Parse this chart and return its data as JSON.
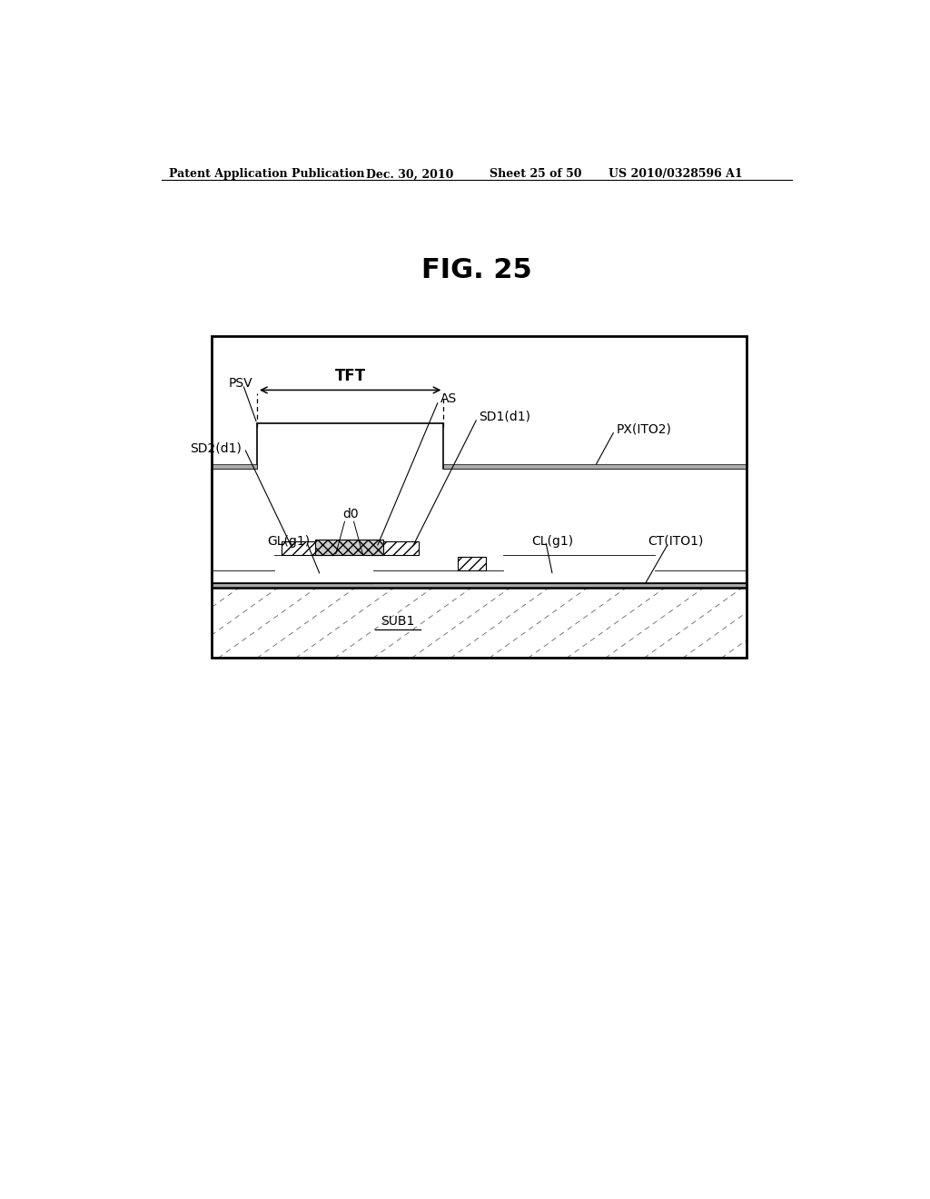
{
  "title": "FIG. 25",
  "patent_header": "Patent Application Publication",
  "patent_date": "Dec. 30, 2010",
  "patent_sheet": "Sheet 25 of 50",
  "patent_number": "US 2010/0328596 A1",
  "bg_color": "#ffffff",
  "line_color": "#000000",
  "hatch_color": "#555555",
  "gray_fill": "#aaaaaa",
  "light_gray": "#cccccc"
}
